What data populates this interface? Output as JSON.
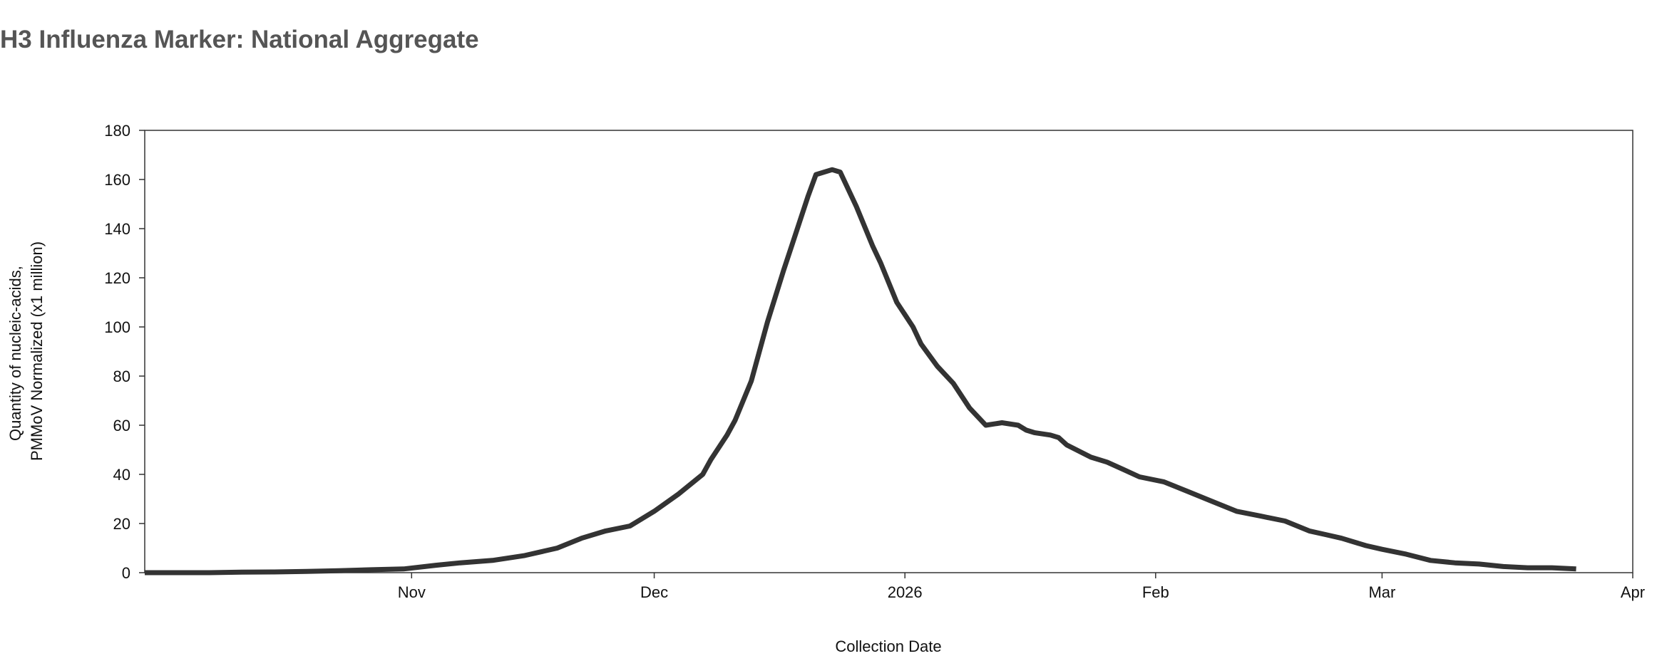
{
  "chart_data": {
    "type": "line",
    "title": "H3 Influenza Marker: National Aggregate",
    "xlabel": "Collection Date",
    "ylabel_lines": [
      "Quantity of nucleic-acids,",
      "PMMoV Normalized (x1 million)"
    ],
    "x_axis": {
      "min": "2025-09-29",
      "max": "2026-04-01",
      "ticks": [
        {
          "date": "2025-11-01",
          "label": "Nov"
        },
        {
          "date": "2025-12-01",
          "label": "Dec"
        },
        {
          "date": "2026-01-01",
          "label": "2026"
        },
        {
          "date": "2026-02-01",
          "label": "Feb"
        },
        {
          "date": "2026-03-01",
          "label": "Mar"
        },
        {
          "date": "2026-04-01",
          "label": "Apr"
        }
      ]
    },
    "y_axis": {
      "ylim": [
        0,
        180
      ],
      "ticks": [
        0,
        20,
        40,
        60,
        80,
        100,
        120,
        140,
        160,
        180
      ]
    },
    "grid": false,
    "line_color": "#333333",
    "series": [
      {
        "x": [
          "2025-09-29",
          "2025-10-03",
          "2025-10-07",
          "2025-10-11",
          "2025-10-15",
          "2025-10-19",
          "2025-10-23",
          "2025-10-27",
          "2025-10-31",
          "2025-11-04",
          "2025-11-07",
          "2025-11-11",
          "2025-11-15",
          "2025-11-19",
          "2025-11-22",
          "2025-11-25",
          "2025-11-28",
          "2025-12-01",
          "2025-12-04",
          "2025-12-07",
          "2025-12-08",
          "2025-12-10",
          "2025-12-11",
          "2025-12-13",
          "2025-12-15",
          "2025-12-17",
          "2025-12-18",
          "2025-12-20",
          "2025-12-21",
          "2025-12-23",
          "2025-12-24",
          "2025-12-26",
          "2025-12-28",
          "2025-12-29",
          "2025-12-30",
          "2025-12-31",
          "2026-01-02",
          "2026-01-03",
          "2026-01-05",
          "2026-01-07",
          "2026-01-09",
          "2026-01-11",
          "2026-01-13",
          "2026-01-15",
          "2026-01-16",
          "2026-01-17",
          "2026-01-19",
          "2026-01-20",
          "2026-01-21",
          "2026-01-24",
          "2026-01-26",
          "2026-01-28",
          "2026-01-30",
          "2026-02-02",
          "2026-02-05",
          "2026-02-08",
          "2026-02-11",
          "2026-02-14",
          "2026-02-17",
          "2026-02-20",
          "2026-02-22",
          "2026-02-24",
          "2026-02-27",
          "2026-03-01",
          "2026-03-04",
          "2026-03-07",
          "2026-03-10",
          "2026-03-13",
          "2026-03-16",
          "2026-03-19",
          "2026-03-22",
          "2026-03-25"
        ],
        "y": [
          0,
          0,
          0,
          0.2,
          0.3,
          0.5,
          0.8,
          1.2,
          1.5,
          3,
          4,
          5,
          7,
          10,
          14,
          17,
          19,
          25,
          32,
          40,
          46,
          56,
          62,
          78,
          102,
          123,
          133,
          153,
          162,
          164,
          163,
          149,
          133,
          126,
          118,
          110,
          100,
          93,
          84,
          77,
          67,
          60,
          61,
          60,
          58,
          57,
          56,
          55,
          52,
          47,
          45,
          42,
          39,
          37,
          33,
          29,
          25,
          23,
          21,
          17,
          15.5,
          14,
          11,
          9.5,
          7.5,
          5,
          4,
          3.5,
          2.5,
          2,
          2,
          1.5
        ]
      }
    ]
  }
}
